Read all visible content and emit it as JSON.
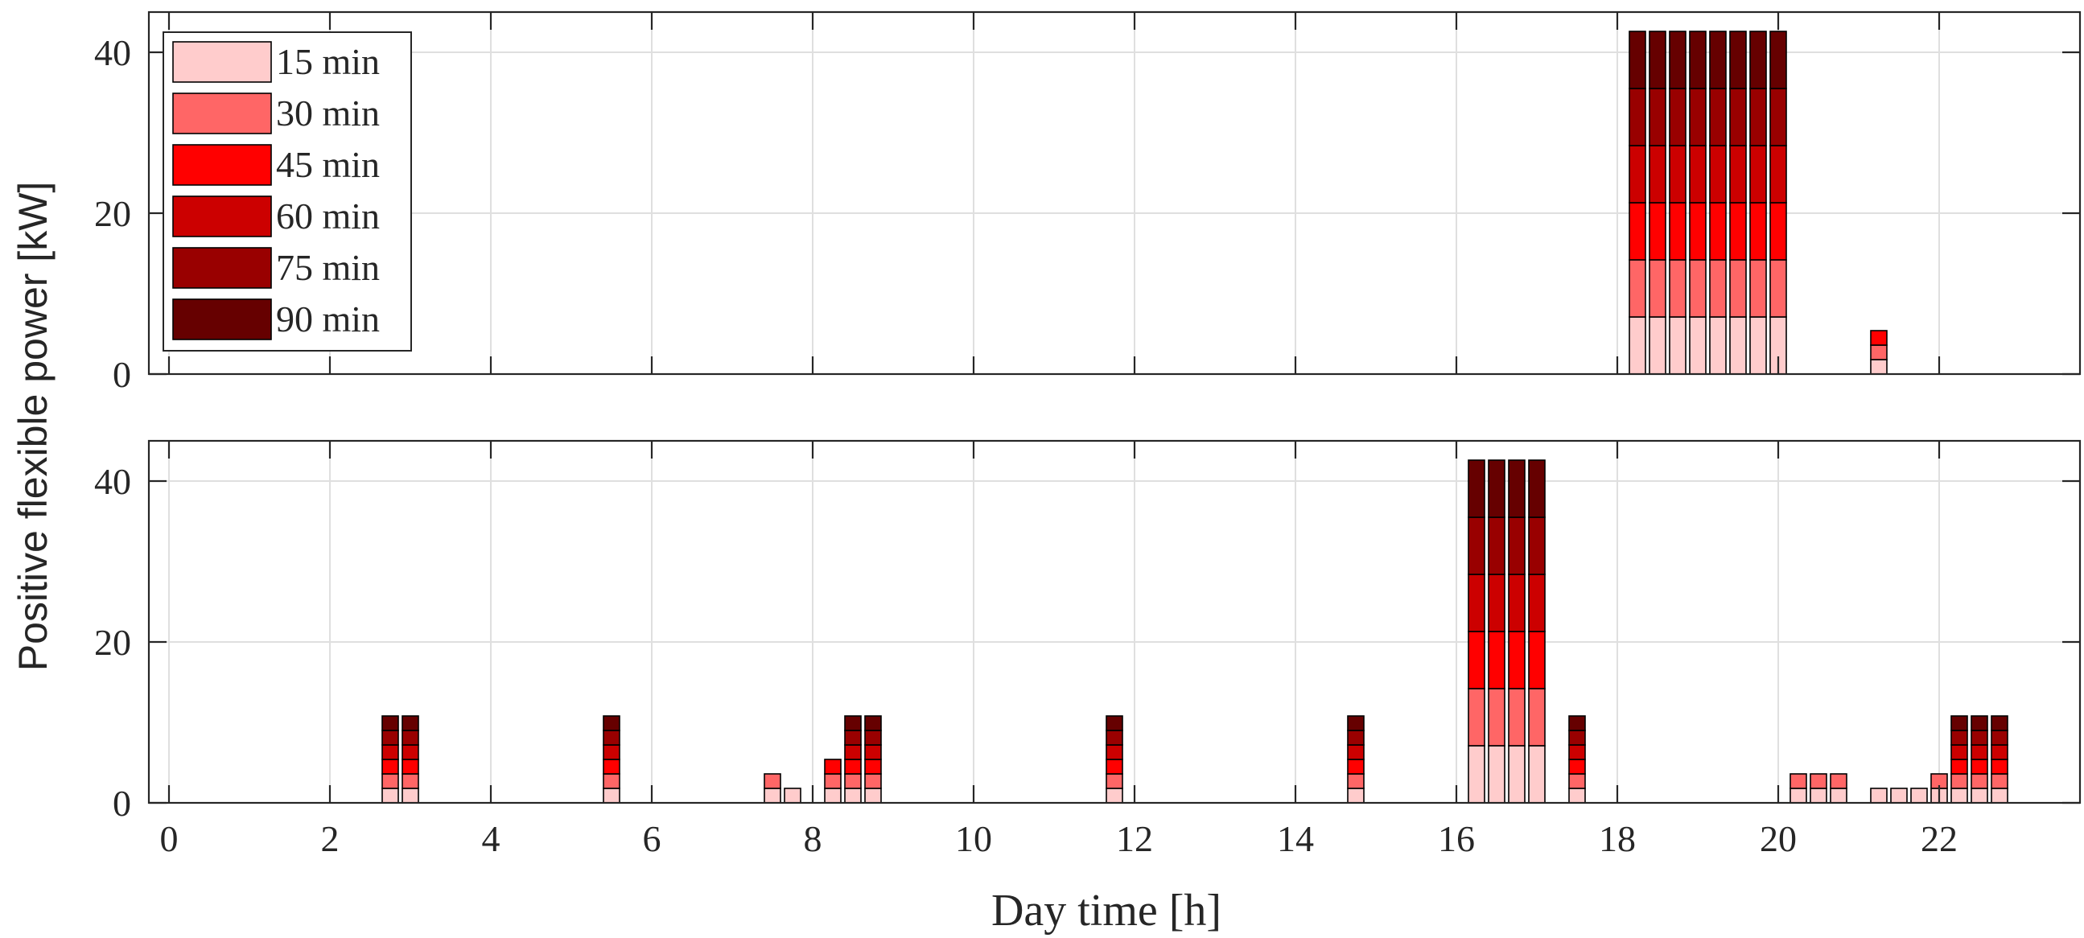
{
  "chart_data": {
    "type": "bar",
    "stacked": true,
    "xlabel": "Day time [h]",
    "ylabel": "Positive flexible power [kW]",
    "xlim": [
      -0.25,
      23.75
    ],
    "ylim": [
      0,
      45
    ],
    "xticks": [
      0,
      2,
      4,
      6,
      8,
      10,
      12,
      14,
      16,
      18,
      20,
      22
    ],
    "yticks": [
      0,
      20,
      40
    ],
    "bar_width_h": 0.2,
    "grid": true,
    "legend": {
      "placement": "top-left",
      "entries": [
        "15 min",
        "30 min",
        "45 min",
        "60 min",
        "75 min",
        "90 min"
      ]
    },
    "series_colors": [
      "#FFCCCC",
      "#FF6666",
      "#FF0000",
      "#CC0000",
      "#990000",
      "#660000"
    ],
    "panels": [
      {
        "name": "top",
        "bars": [
          {
            "x": 18.25,
            "values": [
              7.1,
              7.1,
              7.1,
              7.1,
              7.1,
              7.1
            ]
          },
          {
            "x": 18.5,
            "values": [
              7.1,
              7.1,
              7.1,
              7.1,
              7.1,
              7.1
            ]
          },
          {
            "x": 18.75,
            "values": [
              7.1,
              7.1,
              7.1,
              7.1,
              7.1,
              7.1
            ]
          },
          {
            "x": 19.0,
            "values": [
              7.1,
              7.1,
              7.1,
              7.1,
              7.1,
              7.1
            ]
          },
          {
            "x": 19.25,
            "values": [
              7.1,
              7.1,
              7.1,
              7.1,
              7.1,
              7.1
            ]
          },
          {
            "x": 19.5,
            "values": [
              7.1,
              7.1,
              7.1,
              7.1,
              7.1,
              7.1
            ]
          },
          {
            "x": 19.75,
            "values": [
              7.1,
              7.1,
              7.1,
              7.1,
              7.1,
              7.1
            ]
          },
          {
            "x": 20.0,
            "values": [
              7.1,
              7.1,
              7.1,
              7.1,
              7.1,
              7.1
            ]
          },
          {
            "x": 21.25,
            "values": [
              1.8,
              1.8,
              1.8,
              0,
              0,
              0
            ]
          }
        ]
      },
      {
        "name": "bottom",
        "bars": [
          {
            "x": 2.75,
            "values": [
              1.8,
              1.8,
              1.8,
              1.8,
              1.8,
              1.8
            ]
          },
          {
            "x": 3.0,
            "values": [
              1.8,
              1.8,
              1.8,
              1.8,
              1.8,
              1.8
            ]
          },
          {
            "x": 5.5,
            "values": [
              1.8,
              1.8,
              1.8,
              1.8,
              1.8,
              1.8
            ]
          },
          {
            "x": 7.5,
            "values": [
              1.8,
              1.8,
              0,
              0,
              0,
              0
            ]
          },
          {
            "x": 7.75,
            "values": [
              1.8,
              0,
              0,
              0,
              0,
              0
            ]
          },
          {
            "x": 8.25,
            "values": [
              1.8,
              1.8,
              1.8,
              0,
              0,
              0
            ]
          },
          {
            "x": 8.5,
            "values": [
              1.8,
              1.8,
              1.8,
              1.8,
              1.8,
              1.8
            ]
          },
          {
            "x": 8.75,
            "values": [
              1.8,
              1.8,
              1.8,
              1.8,
              1.8,
              1.8
            ]
          },
          {
            "x": 11.75,
            "values": [
              1.8,
              1.8,
              1.8,
              1.8,
              1.8,
              1.8
            ]
          },
          {
            "x": 14.75,
            "values": [
              1.8,
              1.8,
              1.8,
              1.8,
              1.8,
              1.8
            ]
          },
          {
            "x": 16.25,
            "values": [
              7.1,
              7.1,
              7.1,
              7.1,
              7.1,
              7.1
            ]
          },
          {
            "x": 16.5,
            "values": [
              7.1,
              7.1,
              7.1,
              7.1,
              7.1,
              7.1
            ]
          },
          {
            "x": 16.75,
            "values": [
              7.1,
              7.1,
              7.1,
              7.1,
              7.1,
              7.1
            ]
          },
          {
            "x": 17.0,
            "values": [
              7.1,
              7.1,
              7.1,
              7.1,
              7.1,
              7.1
            ]
          },
          {
            "x": 17.5,
            "values": [
              1.8,
              1.8,
              1.8,
              1.8,
              1.8,
              1.8
            ]
          },
          {
            "x": 20.25,
            "values": [
              1.8,
              1.8,
              0,
              0,
              0,
              0
            ]
          },
          {
            "x": 20.5,
            "values": [
              1.8,
              1.8,
              0,
              0,
              0,
              0
            ]
          },
          {
            "x": 20.75,
            "values": [
              1.8,
              1.8,
              0,
              0,
              0,
              0
            ]
          },
          {
            "x": 21.25,
            "values": [
              1.8,
              0,
              0,
              0,
              0,
              0
            ]
          },
          {
            "x": 21.5,
            "values": [
              1.8,
              0,
              0,
              0,
              0,
              0
            ]
          },
          {
            "x": 21.75,
            "values": [
              1.8,
              0,
              0,
              0,
              0,
              0
            ]
          },
          {
            "x": 22.0,
            "values": [
              1.8,
              1.8,
              0,
              0,
              0,
              0
            ]
          },
          {
            "x": 22.25,
            "values": [
              1.8,
              1.8,
              1.8,
              1.8,
              1.8,
              1.8
            ]
          },
          {
            "x": 22.5,
            "values": [
              1.8,
              1.8,
              1.8,
              1.8,
              1.8,
              1.8
            ]
          },
          {
            "x": 22.75,
            "values": [
              1.8,
              1.8,
              1.8,
              1.8,
              1.8,
              1.8
            ]
          }
        ]
      }
    ]
  }
}
